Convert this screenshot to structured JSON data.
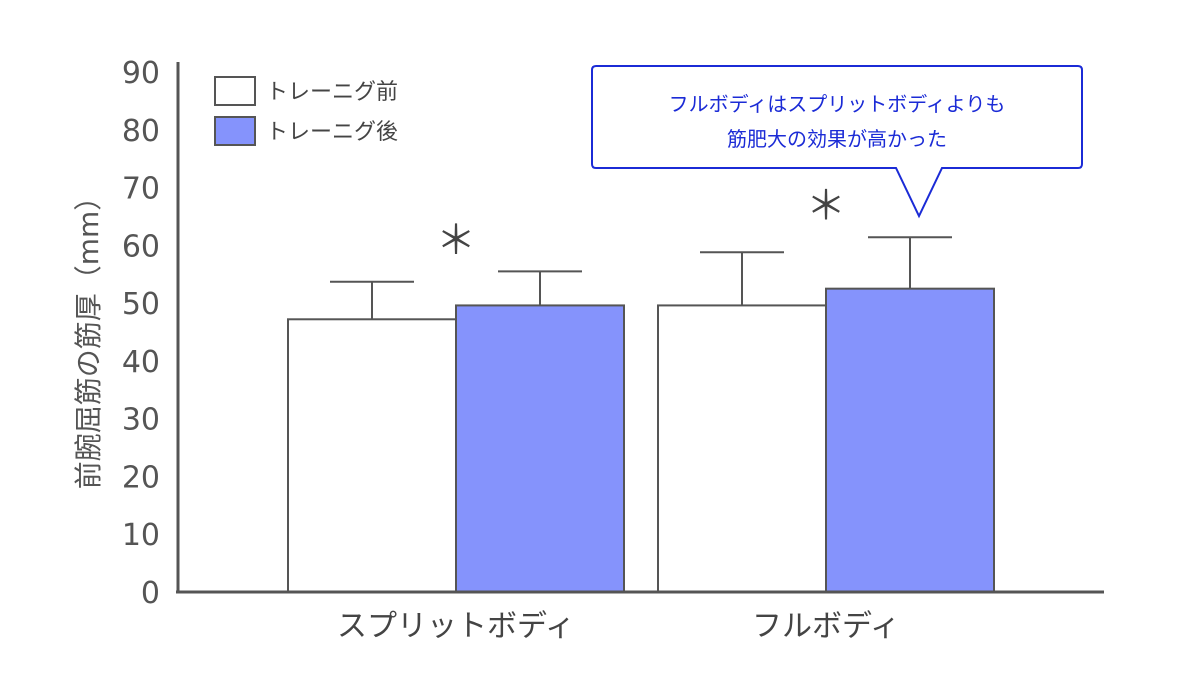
{
  "chart_data": {
    "type": "bar",
    "title": "",
    "xlabel": "",
    "ylabel": "前腕屈筋の筋厚（mm）",
    "ylim": [
      0,
      90
    ],
    "yticks": [
      0,
      10,
      20,
      30,
      40,
      50,
      60,
      70,
      80,
      90
    ],
    "grid": false,
    "legend_position": "top-left",
    "categories": [
      "スプリットボディ",
      "フルボディ"
    ],
    "series": [
      {
        "name": "トレーニグ前",
        "color": "#ffffff",
        "values": [
          47.2,
          49.6
        ],
        "errors": [
          6.5,
          9.2
        ]
      },
      {
        "name": "トレーニグ後",
        "color": "#8593fc",
        "values": [
          49.6,
          52.5
        ],
        "errors": [
          5.9,
          8.9
        ]
      }
    ],
    "significance": [
      {
        "category": 0,
        "label": "＊"
      },
      {
        "category": 1,
        "label": "＊"
      }
    ],
    "annotation": {
      "lines": [
        "フルボディはスプリットボディよりも",
        "筋肥大の効果が高かった"
      ],
      "color": "#1b2bd6"
    }
  }
}
